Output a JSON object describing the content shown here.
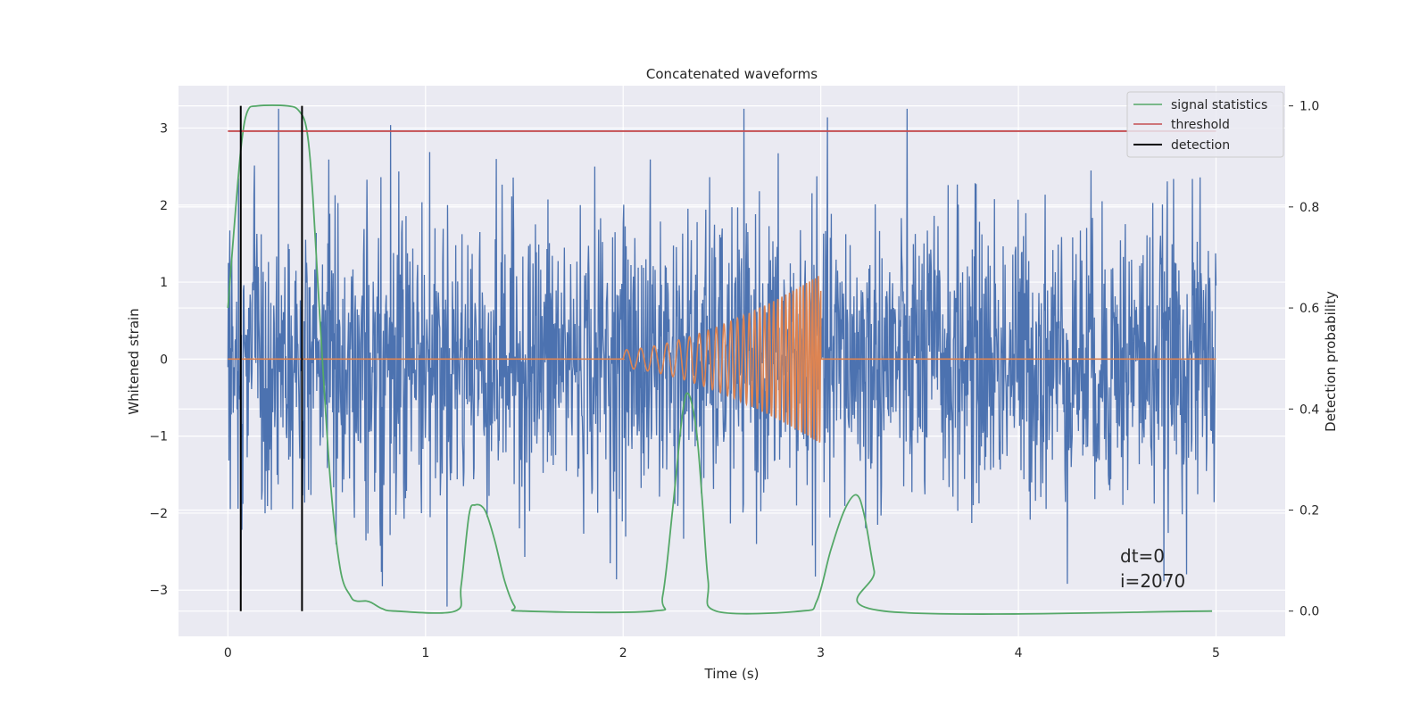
{
  "chart_data": {
    "type": "line",
    "title": "Concatenated waveforms",
    "xlabel": "Time (s)",
    "ylabel": "Whitened strain",
    "y2label": "Detection probability",
    "xlim": [
      -0.25,
      5.35
    ],
    "ylim": [
      -3.6,
      3.55
    ],
    "y2lim": [
      -0.05,
      1.04
    ],
    "x_ticks": [
      0,
      1,
      2,
      3,
      4,
      5
    ],
    "y_ticks": [
      -3,
      -2,
      -1,
      0,
      1,
      2,
      3
    ],
    "y2_ticks": [
      0.0,
      0.2,
      0.4,
      0.6,
      0.8,
      1.0
    ],
    "grid": true,
    "legend_position": "top-right",
    "series": [
      {
        "name": "",
        "axis": "left",
        "color": "#4c72b0",
        "kind": "noise",
        "x_range": [
          0,
          5
        ],
        "amplitude_range": [
          -3.35,
          3.25
        ],
        "samples": 2048
      },
      {
        "name": "",
        "axis": "left",
        "color": "#dd8452",
        "kind": "chirp",
        "flat_value": 0,
        "chirp_start": 2.0,
        "chirp_end": 3.0,
        "chirp_peak_amplitude": 1.1
      },
      {
        "name": "signal statistics",
        "axis": "right",
        "color": "#55a868",
        "points": [
          [
            0.0,
            0.6
          ],
          [
            0.04,
            0.8
          ],
          [
            0.07,
            0.93
          ],
          [
            0.1,
            0.99
          ],
          [
            0.15,
            1.0
          ],
          [
            0.3,
            1.0
          ],
          [
            0.36,
            0.99
          ],
          [
            0.4,
            0.95
          ],
          [
            0.43,
            0.82
          ],
          [
            0.47,
            0.55
          ],
          [
            0.52,
            0.25
          ],
          [
            0.57,
            0.08
          ],
          [
            0.62,
            0.03
          ],
          [
            0.65,
            0.02
          ],
          [
            0.7,
            0.02
          ],
          [
            0.73,
            0.016
          ],
          [
            0.78,
            0.005
          ],
          [
            0.85,
            0.0
          ],
          [
            1.15,
            0.0
          ],
          [
            1.18,
            0.05
          ],
          [
            1.22,
            0.19
          ],
          [
            1.25,
            0.21
          ],
          [
            1.3,
            0.2
          ],
          [
            1.35,
            0.14
          ],
          [
            1.4,
            0.06
          ],
          [
            1.45,
            0.01
          ],
          [
            1.5,
            0.0
          ],
          [
            2.15,
            0.0
          ],
          [
            2.2,
            0.03
          ],
          [
            2.25,
            0.2
          ],
          [
            2.3,
            0.39
          ],
          [
            2.33,
            0.43
          ],
          [
            2.37,
            0.36
          ],
          [
            2.4,
            0.22
          ],
          [
            2.43,
            0.06
          ],
          [
            2.47,
            0.0
          ],
          [
            2.9,
            0.0
          ],
          [
            2.98,
            0.02
          ],
          [
            3.05,
            0.12
          ],
          [
            3.12,
            0.2
          ],
          [
            3.18,
            0.23
          ],
          [
            3.22,
            0.19
          ],
          [
            3.27,
            0.08
          ],
          [
            3.32,
            0.0
          ],
          [
            4.98,
            0.0
          ]
        ]
      },
      {
        "name": "threshold",
        "axis": "right",
        "color": "#c44e52",
        "value": 0.95,
        "x_range": [
          0,
          5
        ]
      },
      {
        "name": "detection",
        "axis": "right",
        "color": "#000000",
        "x_values": [
          0.065,
          0.375
        ]
      }
    ],
    "annotations": [
      "dt=0",
      "i=2070"
    ]
  }
}
